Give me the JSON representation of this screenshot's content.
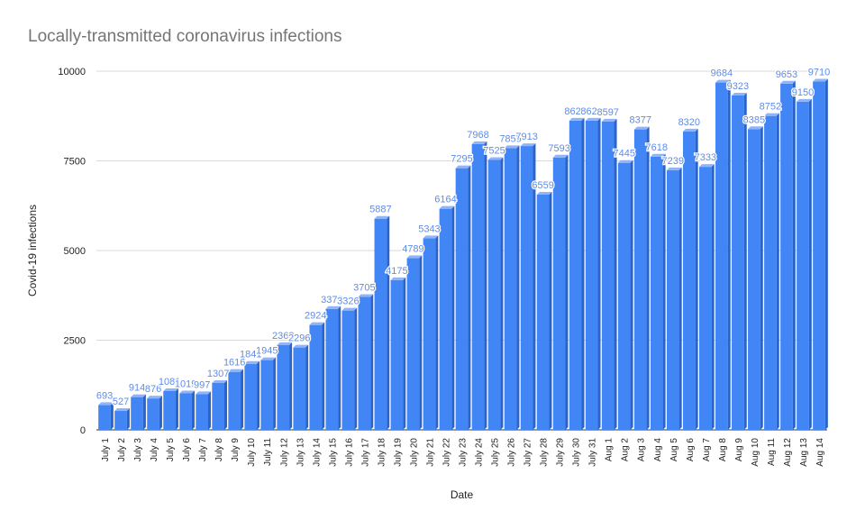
{
  "chart_data": {
    "type": "bar",
    "title": "Locally-transmitted coronavirus infections",
    "xlabel": "Date",
    "ylabel": "Covid-19 infections",
    "ylim": [
      0,
      10000
    ],
    "yticks": [
      0,
      2500,
      5000,
      7500,
      10000
    ],
    "grid": true,
    "legend": "none",
    "categories": [
      "July 1",
      "July 2",
      "July 3",
      "July 4",
      "July 5",
      "July 6",
      "July 7",
      "July 8",
      "July 9",
      "July 10",
      "July 11",
      "July 12",
      "July 13",
      "July 14",
      "July 15",
      "July 16",
      "July 17",
      "July 18",
      "July 19",
      "July 20",
      "July 21",
      "July 22",
      "July 23",
      "July 24",
      "July 25",
      "July 26",
      "July 27",
      "July 28",
      "July 29",
      "July 30",
      "July 31",
      "Aug 1",
      "Aug 2",
      "Aug 3",
      "Aug 4",
      "Aug 5",
      "Aug 6",
      "Aug 7",
      "Aug 8",
      "Aug 9",
      "Aug 10",
      "Aug 11",
      "Aug 12",
      "Aug 13",
      "Aug 14"
    ],
    "values": [
      693,
      527,
      914,
      876,
      1081,
      1019,
      997,
      1307,
      1616,
      1841,
      1945,
      2362,
      2296,
      2924,
      3373,
      3326,
      3705,
      5887,
      4175,
      4789,
      5343,
      6164,
      7295,
      7968,
      7525,
      7855,
      7913,
      6559,
      7593,
      8620,
      8620,
      8597,
      7445,
      8377,
      7618,
      7239,
      8320,
      7333,
      9684,
      9323,
      8385,
      8752,
      9653,
      9150,
      9710
    ],
    "data_labels": [
      "693",
      "527",
      "914",
      "876",
      "1081",
      "1019",
      "997",
      "1307",
      "1616",
      "1841",
      "1945",
      "2362",
      "2296",
      "2924",
      "3373",
      "3326",
      "3705",
      "5887",
      "4175",
      "4789",
      "5343",
      "6164",
      "7295",
      "7968",
      "7525",
      "7855",
      "7913",
      "6559",
      "7593",
      "8620",
      "8620",
      "8597",
      "7445",
      "8377",
      "7618",
      "7239",
      "8320",
      "7333",
      "9684",
      "9323",
      "8385",
      "8752",
      "9653",
      "9150",
      "9710"
    ],
    "colors": {
      "bar": "#4285f4",
      "bar_dark": "#2a63c9",
      "bar_top": "#8fb4f9",
      "label": "#5b8cf0",
      "grid": "#d9d9d9",
      "axis": "#333333"
    }
  }
}
